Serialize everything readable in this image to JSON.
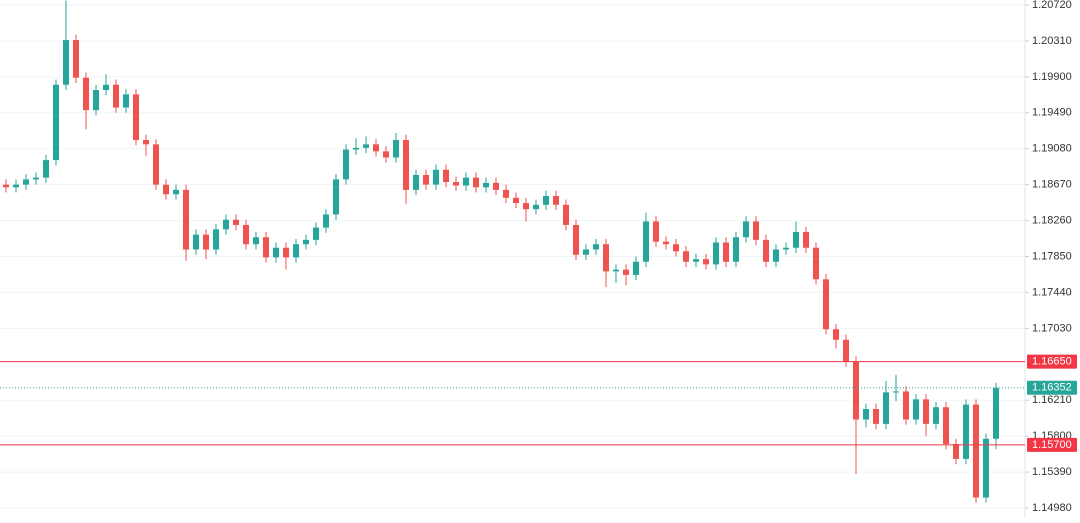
{
  "chart_data": {
    "type": "candlestick",
    "up_color": "#26a69a",
    "down_color": "#ef5350",
    "grid": true,
    "ylim": [
      1.14866,
      1.20777
    ],
    "yticks": [
      {
        "value": 1.2072,
        "label": "1.20720"
      },
      {
        "value": 1.2031,
        "label": "1.20310"
      },
      {
        "value": 1.199,
        "label": "1.19900"
      },
      {
        "value": 1.1949,
        "label": "1.19490"
      },
      {
        "value": 1.1908,
        "label": "1.19080"
      },
      {
        "value": 1.1867,
        "label": "1.18670"
      },
      {
        "value": 1.1826,
        "label": "1.18260"
      },
      {
        "value": 1.1785,
        "label": "1.17850"
      },
      {
        "value": 1.1744,
        "label": "1.17440"
      },
      {
        "value": 1.1703,
        "label": "1.17030"
      },
      {
        "value": 1.1621,
        "label": "1.16210"
      },
      {
        "value": 1.158,
        "label": "1.15800"
      },
      {
        "value": 1.1539,
        "label": "1.15390"
      },
      {
        "value": 1.1498,
        "label": "1.14980"
      }
    ],
    "open": [
      1.1867,
      1.1864,
      1.1867,
      1.1873,
      1.1875,
      1.1895,
      1.1981,
      1.2032,
      1.1989,
      1.1952,
      1.1975,
      1.1981,
      1.1955,
      1.197,
      1.1918,
      1.1913,
      1.1867,
      1.1856,
      1.1861,
      1.1793,
      1.181,
      1.1793,
      1.1816,
      1.1827,
      1.1821,
      1.1799,
      1.1807,
      1.1784,
      1.1795,
      1.1784,
      1.1799,
      1.1804,
      1.1818,
      1.1833,
      1.1873,
      1.1907,
      1.1909,
      1.1913,
      1.1905,
      1.1898,
      1.1918,
      1.1861,
      1.1878,
      1.1867,
      1.1884,
      1.187,
      1.1866,
      1.1875,
      1.1864,
      1.1869,
      1.1861,
      1.1852,
      1.1846,
      1.1839,
      1.1844,
      1.1854,
      1.1844,
      1.1821,
      1.1787,
      1.1793,
      1.1799,
      1.1768,
      1.177,
      1.1764,
      1.1779,
      1.1825,
      1.1802,
      1.1799,
      1.1791,
      1.1779,
      1.1782,
      1.1776,
      1.1801,
      1.1779,
      1.1807,
      1.1825,
      1.1804,
      1.1779,
      1.1793,
      1.1795,
      1.1813,
      1.1795,
      1.1759,
      1.1702,
      1.169,
      1.1665,
      1.1599,
      1.1611,
      1.1594,
      1.163,
      1.1631,
      1.1599,
      1.1622,
      1.1594,
      1.1613,
      1.1571,
      1.1554,
      1.1616,
      1.151,
      1.1577
    ],
    "high": [
      1.1873,
      1.1873,
      1.1879,
      1.1881,
      1.1901,
      1.1987,
      1.2077,
      1.2038,
      1.1995,
      1.1981,
      1.1993,
      1.1987,
      1.1976,
      1.1976,
      1.1924,
      1.1919,
      1.1873,
      1.1867,
      1.1867,
      1.1816,
      1.1816,
      1.1822,
      1.1833,
      1.1833,
      1.1827,
      1.1813,
      1.1813,
      1.1801,
      1.1801,
      1.1805,
      1.181,
      1.1824,
      1.1839,
      1.1879,
      1.1913,
      1.192,
      1.1922,
      1.1919,
      1.1911,
      1.1926,
      1.1924,
      1.1884,
      1.1884,
      1.189,
      1.189,
      1.1876,
      1.1881,
      1.1881,
      1.1875,
      1.1875,
      1.1867,
      1.1858,
      1.1852,
      1.185,
      1.186,
      1.186,
      1.185,
      1.1827,
      1.1799,
      1.1805,
      1.1805,
      1.1776,
      1.1776,
      1.1785,
      1.1835,
      1.1831,
      1.1808,
      1.1805,
      1.1797,
      1.1788,
      1.1788,
      1.1807,
      1.1807,
      1.1813,
      1.1831,
      1.1831,
      1.181,
      1.1799,
      1.1801,
      1.1825,
      1.1819,
      1.1801,
      1.1765,
      1.1708,
      1.1696,
      1.1671,
      1.1617,
      1.1617,
      1.1643,
      1.165,
      1.1637,
      1.1628,
      1.1628,
      1.1619,
      1.1619,
      1.1577,
      1.1622,
      1.1622,
      1.1583,
      1.1641
    ],
    "low": [
      1.1858,
      1.1858,
      1.1861,
      1.1867,
      1.1869,
      1.1889,
      1.1975,
      1.1983,
      1.193,
      1.1946,
      1.1969,
      1.1949,
      1.1949,
      1.1912,
      1.19,
      1.1861,
      1.185,
      1.185,
      1.178,
      1.1787,
      1.1782,
      1.1787,
      1.181,
      1.1815,
      1.1793,
      1.1793,
      1.1778,
      1.1778,
      1.177,
      1.1778,
      1.1793,
      1.1798,
      1.1812,
      1.1827,
      1.1867,
      1.1901,
      1.1903,
      1.1899,
      1.1892,
      1.1892,
      1.1845,
      1.1855,
      1.1861,
      1.1861,
      1.1864,
      1.186,
      1.186,
      1.1858,
      1.1858,
      1.1855,
      1.1846,
      1.184,
      1.1825,
      1.1833,
      1.1838,
      1.1838,
      1.1815,
      1.1781,
      1.1781,
      1.1787,
      1.175,
      1.1755,
      1.1752,
      1.1758,
      1.1773,
      1.1796,
      1.1793,
      1.1785,
      1.1773,
      1.1773,
      1.177,
      1.177,
      1.1773,
      1.1773,
      1.1801,
      1.1798,
      1.1773,
      1.1773,
      1.1787,
      1.1789,
      1.1789,
      1.1753,
      1.1696,
      1.168,
      1.1659,
      1.1537,
      1.159,
      1.1588,
      1.1588,
      1.162,
      1.1593,
      1.1593,
      1.158,
      1.1588,
      1.1565,
      1.1548,
      1.1548,
      1.1504,
      1.1504,
      1.1565
    ],
    "close": [
      1.1864,
      1.1867,
      1.1873,
      1.1875,
      1.1895,
      1.1981,
      1.2032,
      1.1989,
      1.1952,
      1.1975,
      1.1981,
      1.1955,
      1.197,
      1.1918,
      1.1913,
      1.1867,
      1.1856,
      1.1861,
      1.1793,
      1.181,
      1.1793,
      1.1816,
      1.1827,
      1.1821,
      1.1799,
      1.1807,
      1.1784,
      1.1795,
      1.1784,
      1.1799,
      1.1804,
      1.1818,
      1.1833,
      1.1873,
      1.1907,
      1.1909,
      1.1913,
      1.1905,
      1.1898,
      1.1918,
      1.1861,
      1.1878,
      1.1867,
      1.1884,
      1.187,
      1.1866,
      1.1875,
      1.1864,
      1.1869,
      1.1861,
      1.1852,
      1.1846,
      1.1839,
      1.1844,
      1.1854,
      1.1844,
      1.1821,
      1.1787,
      1.1793,
      1.1799,
      1.1768,
      1.177,
      1.1764,
      1.1779,
      1.1825,
      1.1802,
      1.1799,
      1.1791,
      1.1779,
      1.1782,
      1.1776,
      1.1801,
      1.1779,
      1.1807,
      1.1825,
      1.1804,
      1.1779,
      1.1793,
      1.1795,
      1.1813,
      1.1795,
      1.1759,
      1.1702,
      1.169,
      1.1665,
      1.1599,
      1.1611,
      1.1594,
      1.163,
      1.1631,
      1.1599,
      1.1622,
      1.1594,
      1.1613,
      1.1571,
      1.1554,
      1.1616,
      1.151,
      1.1577,
      1.1635
    ],
    "levels": [
      {
        "value": 1.1665,
        "label": "1.16650",
        "color": "#f23645"
      },
      {
        "value": 1.157,
        "label": "1.15700",
        "color": "#f23645"
      }
    ],
    "current_price": {
      "value": 1.16352,
      "label": "1.16352",
      "color": "#26a69a"
    }
  }
}
